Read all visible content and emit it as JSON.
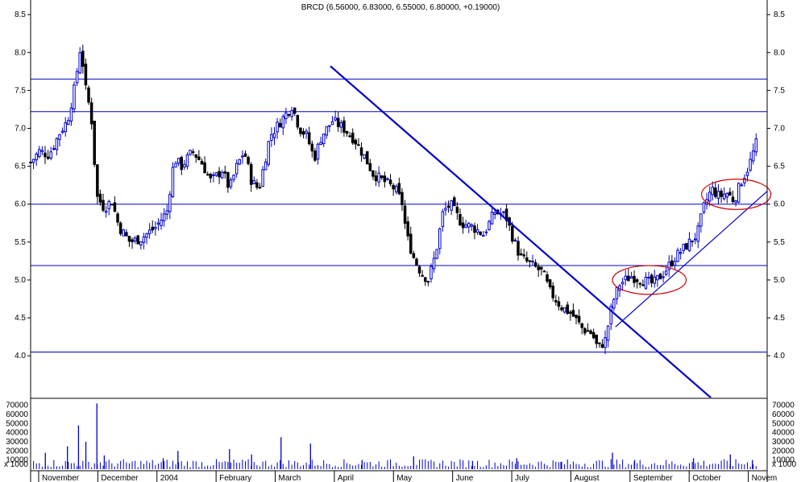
{
  "title": "BRCD (6.56000, 6.83000, 6.55000, 6.80000, +0.19000)",
  "colors": {
    "background": "#ffffff",
    "hline": "#0000cc",
    "trend": "#0000cc",
    "up_candle": "#0000cc",
    "down_candle": "#000000",
    "ellipse": "#cc0000",
    "volume": "#0000cc"
  },
  "chart_data": {
    "type": "candlestick",
    "price_axis": {
      "ylim": [
        3.45,
        8.65
      ],
      "ticks": [
        "4.0",
        "4.5",
        "5.0",
        "5.5",
        "6.0",
        "6.5",
        "7.0",
        "7.5",
        "8.0",
        "8.5"
      ],
      "tick_values": [
        4.0,
        4.5,
        5.0,
        5.5,
        6.0,
        6.5,
        7.0,
        7.5,
        8.0,
        8.5
      ]
    },
    "volume_axis": {
      "ylim": [
        0,
        75000
      ],
      "ticks": [
        "10000",
        "20000",
        "30000",
        "40000",
        "50000",
        "60000",
        "70000"
      ],
      "tick_values": [
        10000,
        20000,
        30000,
        40000,
        50000,
        60000,
        70000
      ],
      "unit_label": "x 1000"
    },
    "months": [
      "November",
      "December",
      "2004",
      "February",
      "March",
      "April",
      "May",
      "June",
      "July",
      "August",
      "September",
      "October",
      "Novem"
    ],
    "horizontal_lines": [
      7.65,
      7.22,
      6.0,
      5.19,
      4.05
    ],
    "trendlines": [
      {
        "name": "downtrend",
        "from": [
          0.407,
          7.82
        ],
        "to": [
          1.0,
          2.8
        ]
      },
      {
        "name": "uptrend",
        "from": [
          0.794,
          4.38
        ],
        "to": [
          1.0,
          6.17
        ]
      }
    ],
    "ellipses": [
      {
        "center_x": 0.84,
        "center_y": 5.0,
        "rx": 0.05,
        "ry": 0.19
      },
      {
        "center_x": 0.958,
        "center_y": 6.13,
        "rx": 0.047,
        "ry": 0.2
      }
    ],
    "close_path": [
      [
        0.0,
        6.55
      ],
      [
        0.012,
        6.7
      ],
      [
        0.025,
        6.65
      ],
      [
        0.04,
        6.95
      ],
      [
        0.05,
        7.1
      ],
      [
        0.06,
        7.55
      ],
      [
        0.068,
        8.1
      ],
      [
        0.075,
        7.5
      ],
      [
        0.082,
        7.2
      ],
      [
        0.09,
        6.1
      ],
      [
        0.1,
        5.95
      ],
      [
        0.11,
        6.05
      ],
      [
        0.12,
        5.7
      ],
      [
        0.135,
        5.5
      ],
      [
        0.15,
        5.55
      ],
      [
        0.17,
        5.7
      ],
      [
        0.185,
        5.9
      ],
      [
        0.195,
        6.6
      ],
      [
        0.205,
        6.5
      ],
      [
        0.22,
        6.7
      ],
      [
        0.232,
        6.55
      ],
      [
        0.245,
        6.3
      ],
      [
        0.26,
        6.45
      ],
      [
        0.27,
        6.2
      ],
      [
        0.28,
        6.5
      ],
      [
        0.29,
        6.7
      ],
      [
        0.3,
        6.3
      ],
      [
        0.31,
        6.2
      ],
      [
        0.325,
        6.9
      ],
      [
        0.34,
        7.1
      ],
      [
        0.355,
        7.3
      ],
      [
        0.365,
        7.0
      ],
      [
        0.375,
        6.9
      ],
      [
        0.385,
        6.6
      ],
      [
        0.395,
        6.9
      ],
      [
        0.41,
        7.1
      ],
      [
        0.425,
        7.0
      ],
      [
        0.44,
        6.85
      ],
      [
        0.455,
        6.6
      ],
      [
        0.465,
        6.4
      ],
      [
        0.48,
        6.3
      ],
      [
        0.495,
        6.2
      ],
      [
        0.505,
        6.0
      ],
      [
        0.51,
        5.6
      ],
      [
        0.52,
        5.3
      ],
      [
        0.53,
        5.1
      ],
      [
        0.54,
        5.0
      ],
      [
        0.55,
        5.35
      ],
      [
        0.56,
        5.9
      ],
      [
        0.57,
        6.0
      ],
      [
        0.585,
        5.75
      ],
      [
        0.6,
        5.7
      ],
      [
        0.615,
        5.6
      ],
      [
        0.63,
        5.9
      ],
      [
        0.645,
        5.85
      ],
      [
        0.655,
        5.55
      ],
      [
        0.665,
        5.3
      ],
      [
        0.68,
        5.2
      ],
      [
        0.695,
        5.1
      ],
      [
        0.705,
        4.85
      ],
      [
        0.72,
        4.65
      ],
      [
        0.735,
        4.55
      ],
      [
        0.75,
        4.35
      ],
      [
        0.762,
        4.3
      ],
      [
        0.77,
        4.1
      ],
      [
        0.78,
        4.2
      ],
      [
        0.79,
        4.7
      ],
      [
        0.8,
        4.95
      ],
      [
        0.815,
        5.05
      ],
      [
        0.83,
        5.0
      ],
      [
        0.845,
        4.95
      ],
      [
        0.86,
        5.1
      ],
      [
        0.875,
        5.3
      ],
      [
        0.89,
        5.45
      ],
      [
        0.905,
        5.6
      ],
      [
        0.915,
        6.0
      ],
      [
        0.925,
        6.2
      ],
      [
        0.935,
        6.1
      ],
      [
        0.945,
        6.15
      ],
      [
        0.955,
        6.05
      ],
      [
        0.965,
        6.3
      ],
      [
        0.975,
        6.5
      ],
      [
        0.985,
        6.8
      ]
    ],
    "volume_bars": [
      [
        0.02,
        18000
      ],
      [
        0.05,
        25000
      ],
      [
        0.065,
        48000
      ],
      [
        0.075,
        30000
      ],
      [
        0.09,
        72000
      ],
      [
        0.1,
        15000
      ],
      [
        0.18,
        12000
      ],
      [
        0.2,
        20000
      ],
      [
        0.27,
        22000
      ],
      [
        0.3,
        16000
      ],
      [
        0.34,
        35000
      ],
      [
        0.38,
        28000
      ],
      [
        0.45,
        10000
      ],
      [
        0.52,
        14000
      ],
      [
        0.6,
        9000
      ],
      [
        0.66,
        12000
      ],
      [
        0.72,
        8000
      ],
      [
        0.79,
        18000
      ],
      [
        0.82,
        10000
      ],
      [
        0.9,
        12000
      ],
      [
        0.95,
        16000
      ],
      [
        0.98,
        10000
      ]
    ]
  }
}
